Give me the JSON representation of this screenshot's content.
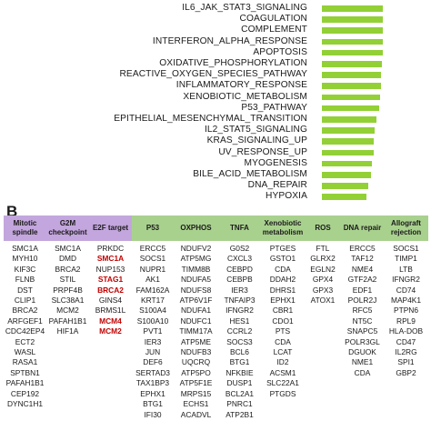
{
  "panel_b_letter": "B",
  "chart_data": {
    "type": "bar",
    "orientation": "horizontal",
    "categories": [
      "IL6_JAK_STAT3_SIGNALING",
      "COAGULATION",
      "COMPLEMENT",
      "INTERFERON_ALPHA_RESPONSE",
      "APOPTOSIS",
      "OXIDATIVE_PHOSPHORYLATION",
      "REACTIVE_OXYGEN_SPECIES_PATHWAY",
      "INFLAMMATORY_RESPONSE",
      "XENOBIOTIC_METABOLISM",
      "P53_PATHWAY",
      "EPITHELIAL_MESENCHYMAL_TRANSITION",
      "IL2_STAT5_SIGNALING",
      "KRAS_SIGNALING_UP",
      "UV_RESPONSE_UP",
      "MYOGENESIS",
      "BILE_ACID_METABOLISM",
      "DNA_REPAIR",
      "HYPOXIA"
    ],
    "values": [
      0.95,
      0.95,
      0.95,
      0.95,
      0.95,
      0.94,
      0.93,
      0.93,
      0.92,
      0.9,
      0.85,
      0.83,
      0.82,
      0.81,
      0.79,
      0.77,
      0.73,
      0.7
    ],
    "bar_color": "#92d036",
    "title": "",
    "xlabel": "",
    "ylabel": ""
  },
  "table": {
    "headers": [
      {
        "label": "Mitotic spindle",
        "color": "#c3a6dd"
      },
      {
        "label": "G2M checkpoint",
        "color": "#c3a6dd"
      },
      {
        "label": "E2F target",
        "color": "#c3a6dd"
      },
      {
        "label": "P53",
        "color": "#a9d18e"
      },
      {
        "label": "OXPHOS",
        "color": "#a9d18e"
      },
      {
        "label": "TNFA",
        "color": "#a9d18e"
      },
      {
        "label": "Xenobiotic metabolism",
        "color": "#a9d18e"
      },
      {
        "label": "ROS",
        "color": "#a9d18e"
      },
      {
        "label": "DNA repair",
        "color": "#a9d18e"
      },
      {
        "label": "Allograft rejection",
        "color": "#a9d18e"
      }
    ],
    "highlight_color": "#c00000",
    "columns": [
      [
        "SMC1A",
        "MYH10",
        "KIF3C",
        "FLNB",
        "DST",
        "CLIP1",
        "BRCA2",
        "ARFGEF1",
        "CDC42EP4",
        "ECT2",
        "WASL",
        "RASA1",
        "SPTBN1",
        "PAFAH1B1",
        "CEP192",
        "DYNC1H1"
      ],
      [
        "SMC1A",
        "DMD",
        "BRCA2",
        "STIL",
        "PRPF4B",
        "SLC38A1",
        "MCM2",
        "PAFAH1B1",
        "HIF1A"
      ],
      [
        "PRKDC",
        "SMC1A",
        "NUP153",
        "STAG1",
        "BRCA2",
        "GINS4",
        "BRMS1L",
        "MCM4",
        "MCM2"
      ],
      [
        "ERCC5",
        "SOCS1",
        "NUPR1",
        "AK1",
        "FAM162A",
        "KRT17",
        "S100A4",
        "S100A10",
        "PVT1",
        "IER3",
        "JUN",
        "DEF6",
        "SERTAD3",
        "TAX1BP3",
        "EPHX1",
        "BTG1",
        "IFI30"
      ],
      [
        "NDUFV2",
        "ATP5MG",
        "TIMM8B",
        "NDUFA5",
        "NDUFS8",
        "ATP6V1F",
        "NDUFA1",
        "NDUFC1",
        "TIMM17A",
        "ATP5ME",
        "NDUFB3",
        "UQCRQ",
        "ATP5PO",
        "ATP5F1E",
        "MRPS15",
        "ECHS1",
        "ACADVL"
      ],
      [
        "G0S2",
        "CXCL3",
        "CEBPD",
        "CEBPB",
        "IER3",
        "TNFAIP3",
        "IFNGR2",
        "HES1",
        "CCRL2",
        "SOCS3",
        "BCL6",
        "BTG1",
        "NFKBIE",
        "DUSP1",
        "BCL2A1",
        "PNRC1",
        "ATP2B1"
      ],
      [
        "PTGES",
        "GSTO1",
        "CDA",
        "DDAH2",
        "DHRS1",
        "EPHX1",
        "CBR1",
        "CDO1",
        "PTS",
        "CDA",
        "LCAT",
        "ID2",
        "ACSM1",
        "SLC22A1",
        "PTGDS"
      ],
      [
        "FTL",
        "GLRX2",
        "EGLN2",
        "GPX4",
        "GPX3",
        "ATOX1"
      ],
      [
        "ERCC5",
        "TAF12",
        "NME4",
        "GTF2A2",
        "EDF1",
        "POLR2J",
        "RFC5",
        "NT5C",
        "SNAPC5",
        "POLR3GL",
        "DGUOK",
        "NME1",
        "CDA"
      ],
      [
        "SOCS1",
        "TIMP1",
        "LTB",
        "IFNGR2",
        "CD74",
        "MAP4K1",
        "PTPN6",
        "RPL9",
        "HLA-DOB",
        "CD47",
        "IL2RG",
        "SPI1",
        "GBP2"
      ]
    ],
    "highlighted_cells": [
      {
        "column": 2,
        "row": 1,
        "text": "SMC1A"
      },
      {
        "column": 2,
        "row": 3,
        "text": "STAG1"
      },
      {
        "column": 2,
        "row": 4,
        "text": "BRCA2"
      },
      {
        "column": 2,
        "row": 7,
        "text": "MCM4"
      },
      {
        "column": 2,
        "row": 8,
        "text": "MCM2"
      }
    ]
  }
}
